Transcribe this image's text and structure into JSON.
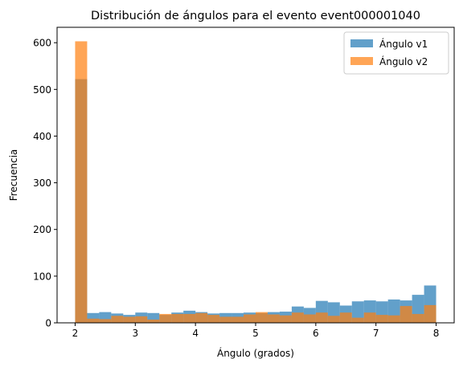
{
  "chart_data": {
    "type": "bar",
    "subtype": "histogram",
    "title": "Distribución de ángulos para el evento event000001040",
    "xlabel": "Ángulo (grados)",
    "ylabel": "Frecuencia",
    "xlim": [
      1.7,
      8.3
    ],
    "ylim": [
      0,
      633
    ],
    "xticks": [
      2,
      3,
      4,
      5,
      6,
      7,
      8
    ],
    "yticks": [
      0,
      100,
      200,
      300,
      400,
      500,
      600
    ],
    "bin_edges": [
      2.0,
      2.2,
      2.4,
      2.6,
      2.8,
      3.0,
      3.2,
      3.4,
      3.6,
      3.8,
      4.0,
      4.2,
      4.4,
      4.6,
      4.8,
      5.0,
      5.2,
      5.4,
      5.6,
      5.8,
      6.0,
      6.2,
      6.4,
      6.6,
      6.8,
      7.0,
      7.2,
      7.4,
      7.6,
      7.8,
      8.0
    ],
    "legend_position": "top-right",
    "series": [
      {
        "name": "Ángulo v1",
        "color": "#1f77b4",
        "alpha": 0.7,
        "values": [
          522,
          21,
          23,
          20,
          17,
          22,
          21,
          17,
          22,
          26,
          23,
          20,
          21,
          21,
          22,
          21,
          23,
          24,
          35,
          32,
          47,
          44,
          37,
          46,
          48,
          46,
          50,
          48,
          60,
          80
        ]
      },
      {
        "name": "Ángulo v2",
        "color": "#ff7f0e",
        "alpha": 0.7,
        "values": [
          603,
          9,
          8,
          15,
          13,
          14,
          7,
          19,
          19,
          19,
          21,
          17,
          13,
          13,
          18,
          23,
          18,
          16,
          22,
          18,
          22,
          15,
          22,
          11,
          22,
          17,
          16,
          36,
          19,
          38
        ]
      }
    ]
  }
}
